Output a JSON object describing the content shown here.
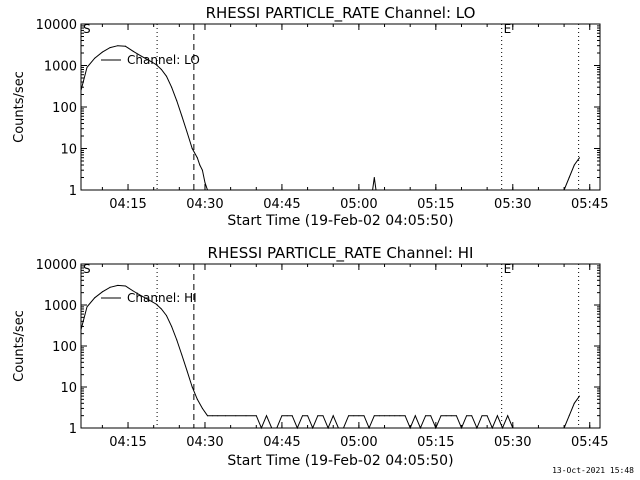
{
  "footer_timestamp": "13-Oct-2021 15:48",
  "chart_data": [
    {
      "type": "line",
      "title": "RHESSI PARTICLE_RATE Channel: LO",
      "xlabel": "Start Time (19-Feb-02 04:05:50)",
      "ylabel": "Counts/sec",
      "xlim": [
        "04:05:50",
        "05:47:00"
      ],
      "ylim": [
        1,
        10000
      ],
      "yscale": "log",
      "x_ticks": [
        "04:15",
        "04:30",
        "04:45",
        "05:00",
        "05:15",
        "05:30",
        "05:45"
      ],
      "y_ticks": [
        "1",
        "10",
        "100",
        "1000",
        "10000"
      ],
      "legend": {
        "label": "Channel: LO",
        "position": "top-left"
      },
      "markers": [
        {
          "label": "S",
          "time": "04:05:50",
          "style": "dotted"
        },
        {
          "label": "",
          "time": "04:20:40",
          "style": "dotted"
        },
        {
          "label": "",
          "time": "04:27:50",
          "style": "dashed"
        },
        {
          "label": "E",
          "time": "05:27:50",
          "style": "dotted"
        },
        {
          "label": "",
          "time": "05:42:50",
          "style": "dotted"
        }
      ],
      "series": [
        {
          "name": "Channel: LO",
          "x": [
            "04:05:50",
            "04:07:00",
            "04:08:30",
            "04:10:00",
            "04:11:30",
            "04:13:00",
            "04:14:30",
            "04:16:00",
            "04:17:30",
            "04:19:00",
            "04:20:30",
            "04:21:30",
            "04:22:30",
            "04:23:30",
            "04:24:30",
            "04:25:30",
            "04:26:30",
            "04:27:30",
            "04:28:30",
            "04:29:00",
            "04:29:30",
            "04:30:00",
            "04:30:30",
            "04:31:00",
            "04:32:00",
            "04:33:00",
            "04:34:00",
            "05:02:40",
            "05:03:00",
            "05:03:20",
            "05:40:00",
            "05:41:00",
            "05:42:00",
            "05:43:00"
          ],
          "y": [
            250,
            900,
            1500,
            2100,
            2700,
            3000,
            2900,
            2200,
            1700,
            1350,
            1050,
            800,
            550,
            300,
            140,
            60,
            25,
            10,
            6,
            4,
            3,
            1.5,
            1,
            1,
            1,
            1,
            1,
            1,
            2,
            1,
            1,
            2,
            4,
            6
          ]
        }
      ]
    },
    {
      "type": "line",
      "title": "RHESSI PARTICLE_RATE Channel: HI",
      "xlabel": "Start Time (19-Feb-02 04:05:50)",
      "ylabel": "Counts/sec",
      "xlim": [
        "04:05:50",
        "05:47:00"
      ],
      "ylim": [
        1,
        10000
      ],
      "yscale": "log",
      "x_ticks": [
        "04:15",
        "04:30",
        "04:45",
        "05:00",
        "05:15",
        "05:30",
        "05:45"
      ],
      "y_ticks": [
        "1",
        "10",
        "100",
        "1000",
        "10000"
      ],
      "legend": {
        "label": "Channel: HI",
        "position": "top-left"
      },
      "markers": [
        {
          "label": "S",
          "time": "04:05:50",
          "style": "dotted"
        },
        {
          "label": "",
          "time": "04:20:40",
          "style": "dotted"
        },
        {
          "label": "",
          "time": "04:27:50",
          "style": "dashed"
        },
        {
          "label": "E",
          "time": "05:27:50",
          "style": "dotted"
        },
        {
          "label": "",
          "time": "05:42:50",
          "style": "dotted"
        }
      ],
      "series": [
        {
          "name": "Channel: HI",
          "x": [
            "04:05:50",
            "04:07:00",
            "04:08:30",
            "04:10:00",
            "04:11:30",
            "04:13:00",
            "04:14:30",
            "04:16:00",
            "04:17:30",
            "04:19:00",
            "04:20:30",
            "04:21:30",
            "04:22:30",
            "04:23:30",
            "04:24:30",
            "04:25:30",
            "04:26:30",
            "04:27:30",
            "04:28:30",
            "04:29:30",
            "04:30:30",
            "04:31:30",
            "04:32:30",
            "04:34:00",
            "04:36:00",
            "04:38:00",
            "04:40:00",
            "04:41:00",
            "04:42:00",
            "04:43:00",
            "04:44:00",
            "04:45:00",
            "04:46:00",
            "04:47:00",
            "04:48:00",
            "04:49:00",
            "04:50:00",
            "04:51:00",
            "04:52:00",
            "04:53:00",
            "04:54:00",
            "04:55:00",
            "04:56:00",
            "04:57:00",
            "04:58:00",
            "04:59:00",
            "05:00:00",
            "05:01:00",
            "05:02:00",
            "05:03:00",
            "05:04:00",
            "05:05:00",
            "05:06:00",
            "05:07:00",
            "05:08:00",
            "05:09:00",
            "05:10:00",
            "05:11:00",
            "05:12:00",
            "05:13:00",
            "05:14:00",
            "05:15:00",
            "05:16:00",
            "05:17:00",
            "05:18:00",
            "05:19:00",
            "05:20:00",
            "05:21:00",
            "05:22:00",
            "05:23:00",
            "05:24:00",
            "05:25:00",
            "05:26:00",
            "05:27:00",
            "05:28:00",
            "05:29:00",
            "05:30:00",
            "05:35:00",
            "05:40:00",
            "05:41:00",
            "05:42:00",
            "05:43:00"
          ],
          "y": [
            250,
            900,
            1500,
            2100,
            2700,
            3000,
            2900,
            2200,
            1700,
            1350,
            1050,
            800,
            550,
            300,
            140,
            60,
            25,
            10,
            5,
            3,
            2,
            2,
            2,
            2,
            2,
            2,
            2,
            1,
            2,
            1,
            1,
            2,
            2,
            2,
            1,
            2,
            2,
            1,
            2,
            2,
            1,
            2,
            1,
            1,
            2,
            2,
            2,
            2,
            1,
            2,
            2,
            2,
            2,
            2,
            2,
            2,
            1,
            2,
            1,
            2,
            2,
            1,
            2,
            2,
            2,
            2,
            1,
            2,
            2,
            1,
            2,
            2,
            1,
            2,
            1,
            2,
            1,
            1,
            1,
            2,
            4,
            6
          ]
        }
      ]
    }
  ]
}
